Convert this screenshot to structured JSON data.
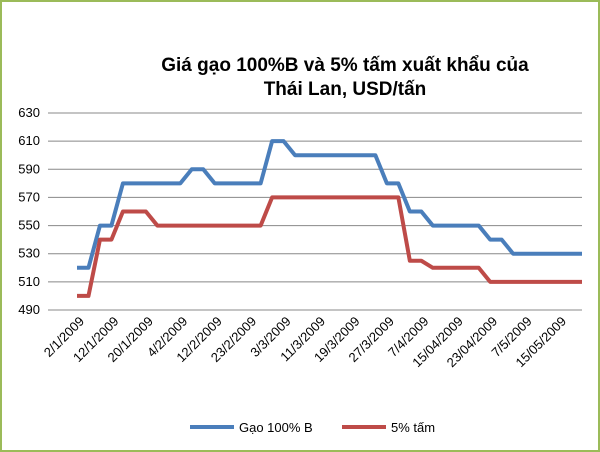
{
  "chart_data": {
    "type": "line",
    "title": "Giá gạo 100%B và 5% tấm xuất khẩu của Thái Lan, USD/tấn",
    "categories": [
      "2/1/2009",
      null,
      null,
      "12/1/2009",
      null,
      null,
      "20/1/2009",
      null,
      null,
      "4/2/2009",
      null,
      null,
      "12/2/2009",
      null,
      null,
      "23/2/2009",
      null,
      null,
      "3/3/2009",
      null,
      null,
      "11/3/2009",
      null,
      null,
      "19/3/2009",
      null,
      null,
      "27/3/2009",
      null,
      null,
      "7/4/2009",
      null,
      null,
      "15/04/2009",
      null,
      null,
      "23/04/2009",
      null,
      null,
      "7/5/2009",
      null,
      null,
      "15/05/2009",
      null,
      null
    ],
    "series": [
      {
        "name": "Gạo 100% B",
        "color": "#4a7ebb",
        "values": [
          520,
          520,
          550,
          550,
          580,
          580,
          580,
          580,
          580,
          580,
          590,
          590,
          580,
          580,
          580,
          580,
          580,
          610,
          610,
          600,
          600,
          600,
          600,
          600,
          600,
          600,
          600,
          580,
          580,
          560,
          560,
          550,
          550,
          550,
          550,
          550,
          540,
          540,
          530,
          530,
          530,
          530,
          530,
          530,
          530
        ]
      },
      {
        "name": "5% tấm",
        "color": "#be4b48",
        "values": [
          500,
          500,
          540,
          540,
          560,
          560,
          560,
          550,
          550,
          550,
          550,
          550,
          550,
          550,
          550,
          550,
          550,
          570,
          570,
          570,
          570,
          570,
          570,
          570,
          570,
          570,
          570,
          570,
          570,
          525,
          525,
          520,
          520,
          520,
          520,
          520,
          510,
          510,
          510,
          510,
          510,
          510,
          510,
          510,
          510
        ]
      }
    ],
    "ylim": [
      490,
      630
    ],
    "yticks": [
      490,
      510,
      530,
      550,
      570,
      590,
      610,
      630
    ],
    "grid": true,
    "legend": "bottom"
  }
}
